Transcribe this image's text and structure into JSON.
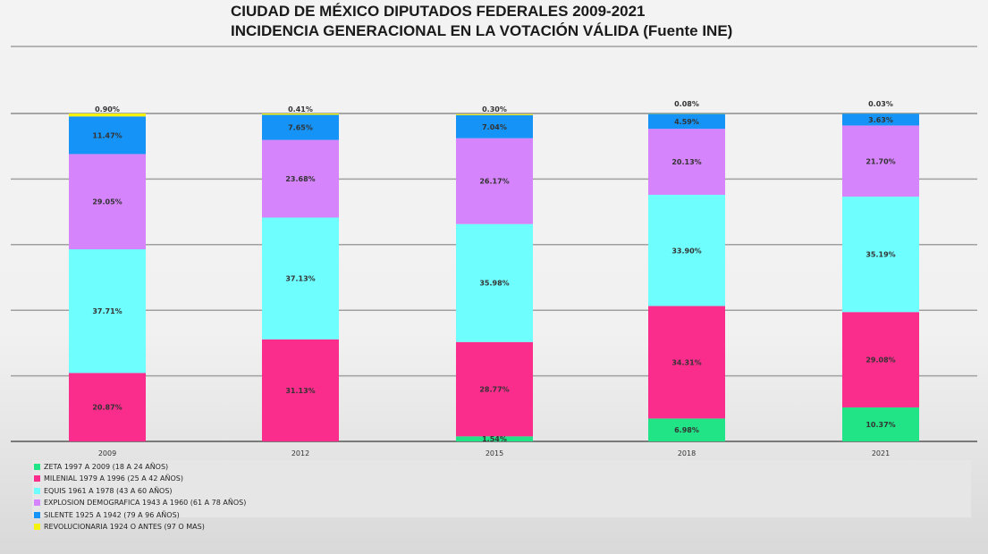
{
  "title_line1": "CIUDAD DE MÉXICO DIPUTADOS FEDERALES 2009-2021",
  "title_line2": "INCIDENCIA GENERACIONAL EN LA VOTACIÓN VÁLIDA (Fuente INE)",
  "chart_data": {
    "type": "bar",
    "stacked": true,
    "normalized_percent": true,
    "categories": [
      "2009",
      "2012",
      "2015",
      "2018",
      "2021"
    ],
    "ylim": [
      0,
      100
    ],
    "grid": true,
    "legend_position": "bottom-left",
    "series": [
      {
        "name": "ZETA 1997 A 2009 (18 A 24 AÑOS)",
        "color": "#21e486",
        "values": [
          0,
          0,
          1.54,
          6.98,
          10.37
        ],
        "labels": [
          "",
          "",
          "1.54%",
          "6.98%",
          "10.37%"
        ]
      },
      {
        "name": "MILENIAL 1979 A 1996 (25 A 42 AÑOS)",
        "color": "#fb2d8c",
        "values": [
          20.87,
          31.13,
          28.77,
          34.31,
          29.08
        ],
        "labels": [
          "20.87%",
          "31.13%",
          "28.77%",
          "34.31%",
          "29.08%"
        ]
      },
      {
        "name": "EQUIS 1961 A 1978 (43 A 60 AÑOS)",
        "color": "#6ffefe",
        "values": [
          37.71,
          37.13,
          35.98,
          33.9,
          35.19
        ],
        "labels": [
          "37.71%",
          "37.13%",
          "35.98%",
          "33.90%",
          "35.19%"
        ]
      },
      {
        "name": "EXPLOSION DEMOGRAFICA 1943 A 1960 (61 A 78 AÑOS)",
        "color": "#d584fb",
        "values": [
          29.05,
          23.68,
          26.17,
          20.13,
          21.7
        ],
        "labels": [
          "29.05%",
          "23.68%",
          "26.17%",
          "20.13%",
          "21.70%"
        ]
      },
      {
        "name": "SILENTE 1925 A 1942 (79 A 96 AÑOS)",
        "color": "#1693f7",
        "values": [
          11.47,
          7.65,
          7.04,
          4.59,
          3.63
        ],
        "labels": [
          "11.47%",
          "7.65%",
          "7.04%",
          "4.59%",
          "3.63%"
        ]
      },
      {
        "name": "REVOLUCIONARIA 1924 O ANTES (97 O MAS)",
        "color": "#f4f20e",
        "values": [
          0.9,
          0.41,
          0.3,
          0.08,
          0.03
        ],
        "labels": [
          "0.90%",
          "0.41%",
          "0.30%",
          "0.08%",
          "0.03%"
        ]
      }
    ]
  }
}
